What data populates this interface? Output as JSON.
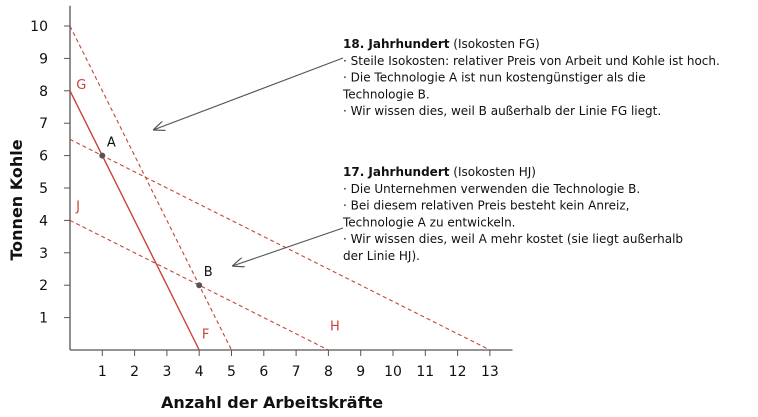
{
  "chart_data": {
    "type": "line",
    "xlabel": "Anzahl der Arbeitskräfte",
    "ylabel": "Tonnen Kohle",
    "xlim": [
      0,
      13.7
    ],
    "ylim": [
      0,
      10.5
    ],
    "x_ticks": [
      1,
      2,
      3,
      4,
      5,
      6,
      7,
      8,
      9,
      10,
      11,
      12,
      13
    ],
    "y_ticks": [
      1,
      2,
      3,
      4,
      5,
      6,
      7,
      8,
      9,
      10
    ],
    "grid": false,
    "lines": [
      {
        "from": [
          0,
          8
        ],
        "to": [
          4,
          0
        ],
        "style": "solid"
      },
      {
        "from": [
          0,
          10
        ],
        "to": [
          5,
          0
        ],
        "style": "dashed"
      },
      {
        "from": [
          0,
          4
        ],
        "to": [
          8,
          0
        ],
        "style": "dashed"
      },
      {
        "from": [
          0,
          6.5
        ],
        "to": [
          13,
          0
        ],
        "style": "dashed"
      }
    ],
    "line_labels": [
      {
        "text": "G",
        "x": 0.35,
        "y": 8.05
      },
      {
        "text": "F",
        "x": 4.2,
        "y": 0.35
      },
      {
        "text": "J",
        "x": 0.25,
        "y": 4.3
      },
      {
        "text": "H",
        "x": 8.2,
        "y": 0.6
      }
    ],
    "points": [
      {
        "label": "A",
        "x": 1,
        "y": 6
      },
      {
        "label": "B",
        "x": 4,
        "y": 2
      }
    ],
    "annotations": [
      {
        "heading": "18. Jahrhundert",
        "heading_suffix": " (Isokosten FG)",
        "lines": [
          "· Steile Isokosten: relativer Preis von Arbeit und Kohle ist hoch.",
          "· Die Technologie A ist nun kostengünstiger als die",
          "Technologie B.",
          "· Wir wissen dies, weil B außerhalb der Linie FG liegt."
        ],
        "arrow_target": [
          2.6,
          6.8
        ]
      },
      {
        "heading": "17. Jahrhundert",
        "heading_suffix": " (Isokosten HJ)",
        "lines": [
          "· Die Unternehmen verwenden die Technologie B.",
          "· Bei diesem relativen Preis besteht kein Anreiz,",
          "Technologie A zu entwickeln.",
          "· Wir wissen dies, weil A mehr kostet (sie liegt außerhalb",
          "der Linie HJ)."
        ],
        "arrow_target": [
          5.05,
          2.6
        ]
      }
    ],
    "colors": {
      "line": "#c8443a",
      "axis": "#555555",
      "arrow": "#555555",
      "point": "#555555"
    }
  }
}
